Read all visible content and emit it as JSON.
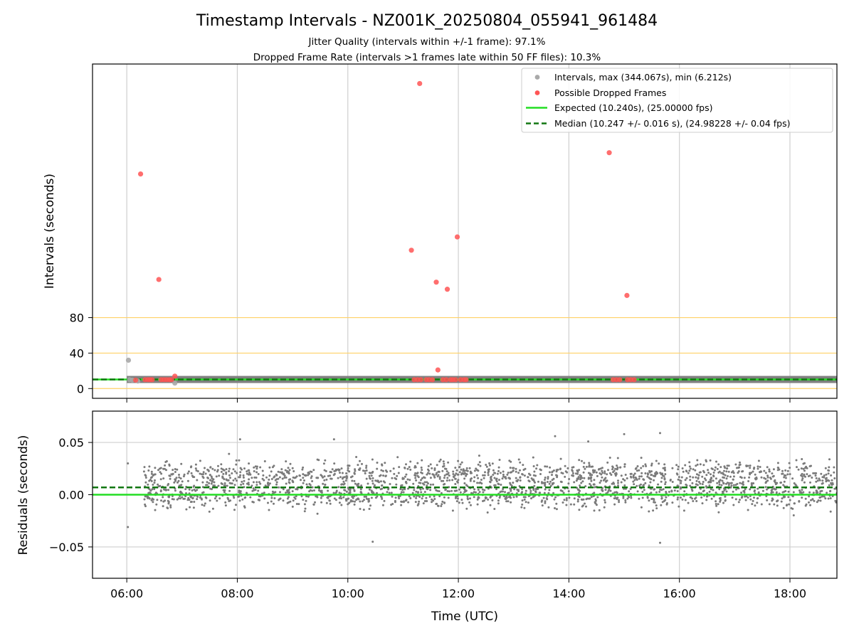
{
  "chart_data": [
    {
      "type": "scatter",
      "title": "Timestamp Intervals - NZ001K_20250804_055941_961484",
      "subtitles": [
        "Jitter Quality (intervals within +/-1 frame): 97.1%",
        "Dropped Frame Rate (intervals >1 frames late within 50 FF files): 10.3%"
      ],
      "ylabel": "Intervals (seconds)",
      "xlim": [
        5.38,
        18.85
      ],
      "ylim": [
        -11,
        366
      ],
      "yticks": [
        0,
        40,
        80
      ],
      "ytick_labels": [
        "0",
        "40",
        "80"
      ],
      "reference_lines": [
        0,
        40,
        80
      ],
      "reference_color": "#ffd166",
      "grid_x": true,
      "legend_position": "upper-right",
      "legend": [
        {
          "label": "Intervals, max (344.067s), min (6.212s)",
          "kind": "marker",
          "color": "#a9a9a9"
        },
        {
          "label": "Possible Dropped Frames",
          "kind": "marker",
          "color": "#ff5555"
        },
        {
          "label": "Expected (10.240s), (25.00000 fps)",
          "kind": "line",
          "color": "#22dd22"
        },
        {
          "label": "Median (10.247 +/- 0.016 s), (24.98228 +/- 0.04 fps)",
          "kind": "dashed",
          "color": "#117711"
        }
      ],
      "expected_value": 10.24,
      "median_value": 10.247,
      "interval_band": {
        "x_start": 6.0,
        "x_end": 18.85,
        "y": 10.25,
        "color": "#808080"
      },
      "series": [
        {
          "name": "Intervals, max (344.067s), min (6.212s)",
          "color": "#a9a9a9",
          "points": [
            {
              "x": 6.03,
              "y": 32
            },
            {
              "x": 6.05,
              "y": 10
            },
            {
              "x": 6.1,
              "y": 9.5
            },
            {
              "x": 6.87,
              "y": 6.2
            },
            {
              "x": 6.2,
              "y": 8.5
            }
          ]
        },
        {
          "name": "Possible Dropped Frames",
          "color": "#ff5555",
          "points": [
            {
              "x": 11.3,
              "y": 344
            },
            {
              "x": 14.73,
              "y": 266
            },
            {
              "x": 6.25,
              "y": 242
            },
            {
              "x": 11.98,
              "y": 171
            },
            {
              "x": 11.15,
              "y": 156
            },
            {
              "x": 6.58,
              "y": 123
            },
            {
              "x": 11.6,
              "y": 120
            },
            {
              "x": 11.8,
              "y": 112
            },
            {
              "x": 15.05,
              "y": 105
            },
            {
              "x": 6.87,
              "y": 14
            },
            {
              "x": 11.63,
              "y": 21
            },
            {
              "x": 6.16,
              "y": 9.5
            },
            {
              "x": 6.33,
              "y": 10
            },
            {
              "x": 6.38,
              "y": 10
            },
            {
              "x": 6.42,
              "y": 10
            },
            {
              "x": 6.46,
              "y": 10
            },
            {
              "x": 6.62,
              "y": 10
            },
            {
              "x": 6.67,
              "y": 10
            },
            {
              "x": 6.72,
              "y": 10
            },
            {
              "x": 6.77,
              "y": 10
            },
            {
              "x": 6.81,
              "y": 10
            },
            {
              "x": 11.2,
              "y": 10
            },
            {
              "x": 11.26,
              "y": 10
            },
            {
              "x": 11.32,
              "y": 10
            },
            {
              "x": 11.42,
              "y": 10
            },
            {
              "x": 11.47,
              "y": 10
            },
            {
              "x": 11.53,
              "y": 10
            },
            {
              "x": 11.72,
              "y": 10
            },
            {
              "x": 11.78,
              "y": 10
            },
            {
              "x": 11.86,
              "y": 10
            },
            {
              "x": 11.9,
              "y": 10
            },
            {
              "x": 11.95,
              "y": 10
            },
            {
              "x": 12.04,
              "y": 10
            },
            {
              "x": 12.1,
              "y": 10
            },
            {
              "x": 12.14,
              "y": 10
            },
            {
              "x": 14.8,
              "y": 10
            },
            {
              "x": 14.86,
              "y": 10
            },
            {
              "x": 14.92,
              "y": 10
            },
            {
              "x": 15.06,
              "y": 10
            },
            {
              "x": 15.12,
              "y": 10
            },
            {
              "x": 15.18,
              "y": 10
            }
          ]
        }
      ]
    },
    {
      "type": "scatter",
      "ylabel": "Residuals (seconds)",
      "xlabel": "Time (UTC)",
      "xlim": [
        5.38,
        18.85
      ],
      "ylim": [
        -0.08,
        0.08
      ],
      "xticks": [
        6,
        8,
        10,
        12,
        14,
        16,
        18
      ],
      "xtick_labels": [
        "06:00",
        "08:00",
        "10:00",
        "12:00",
        "14:00",
        "16:00",
        "18:00"
      ],
      "yticks": [
        -0.05,
        0.0,
        0.05
      ],
      "ytick_labels": [
        "−0.05",
        "0.00",
        "0.05"
      ],
      "grid": true,
      "expected_value": 0.0,
      "median_value": 0.007,
      "expected_color": "#22dd22",
      "median_color": "#117711",
      "residuals": {
        "color": "#7a7a7a",
        "x_range": [
          6.3,
          18.85
        ],
        "count": 2400,
        "upper_cluster_center": 0.019,
        "lower_cluster_center": 0.0,
        "spread": 0.011,
        "extremes": [
          {
            "x": 6.02,
            "y": 0.03
          },
          {
            "x": 6.02,
            "y": -0.031
          },
          {
            "x": 6.08,
            "y": 0.007
          },
          {
            "x": 15.65,
            "y": 0.059
          },
          {
            "x": 15.65,
            "y": -0.046
          },
          {
            "x": 14.35,
            "y": 0.051
          },
          {
            "x": 10.45,
            "y": -0.045
          },
          {
            "x": 9.75,
            "y": 0.053
          },
          {
            "x": 8.05,
            "y": 0.053
          },
          {
            "x": 15.0,
            "y": 0.058
          },
          {
            "x": 13.75,
            "y": 0.056
          }
        ]
      }
    }
  ]
}
